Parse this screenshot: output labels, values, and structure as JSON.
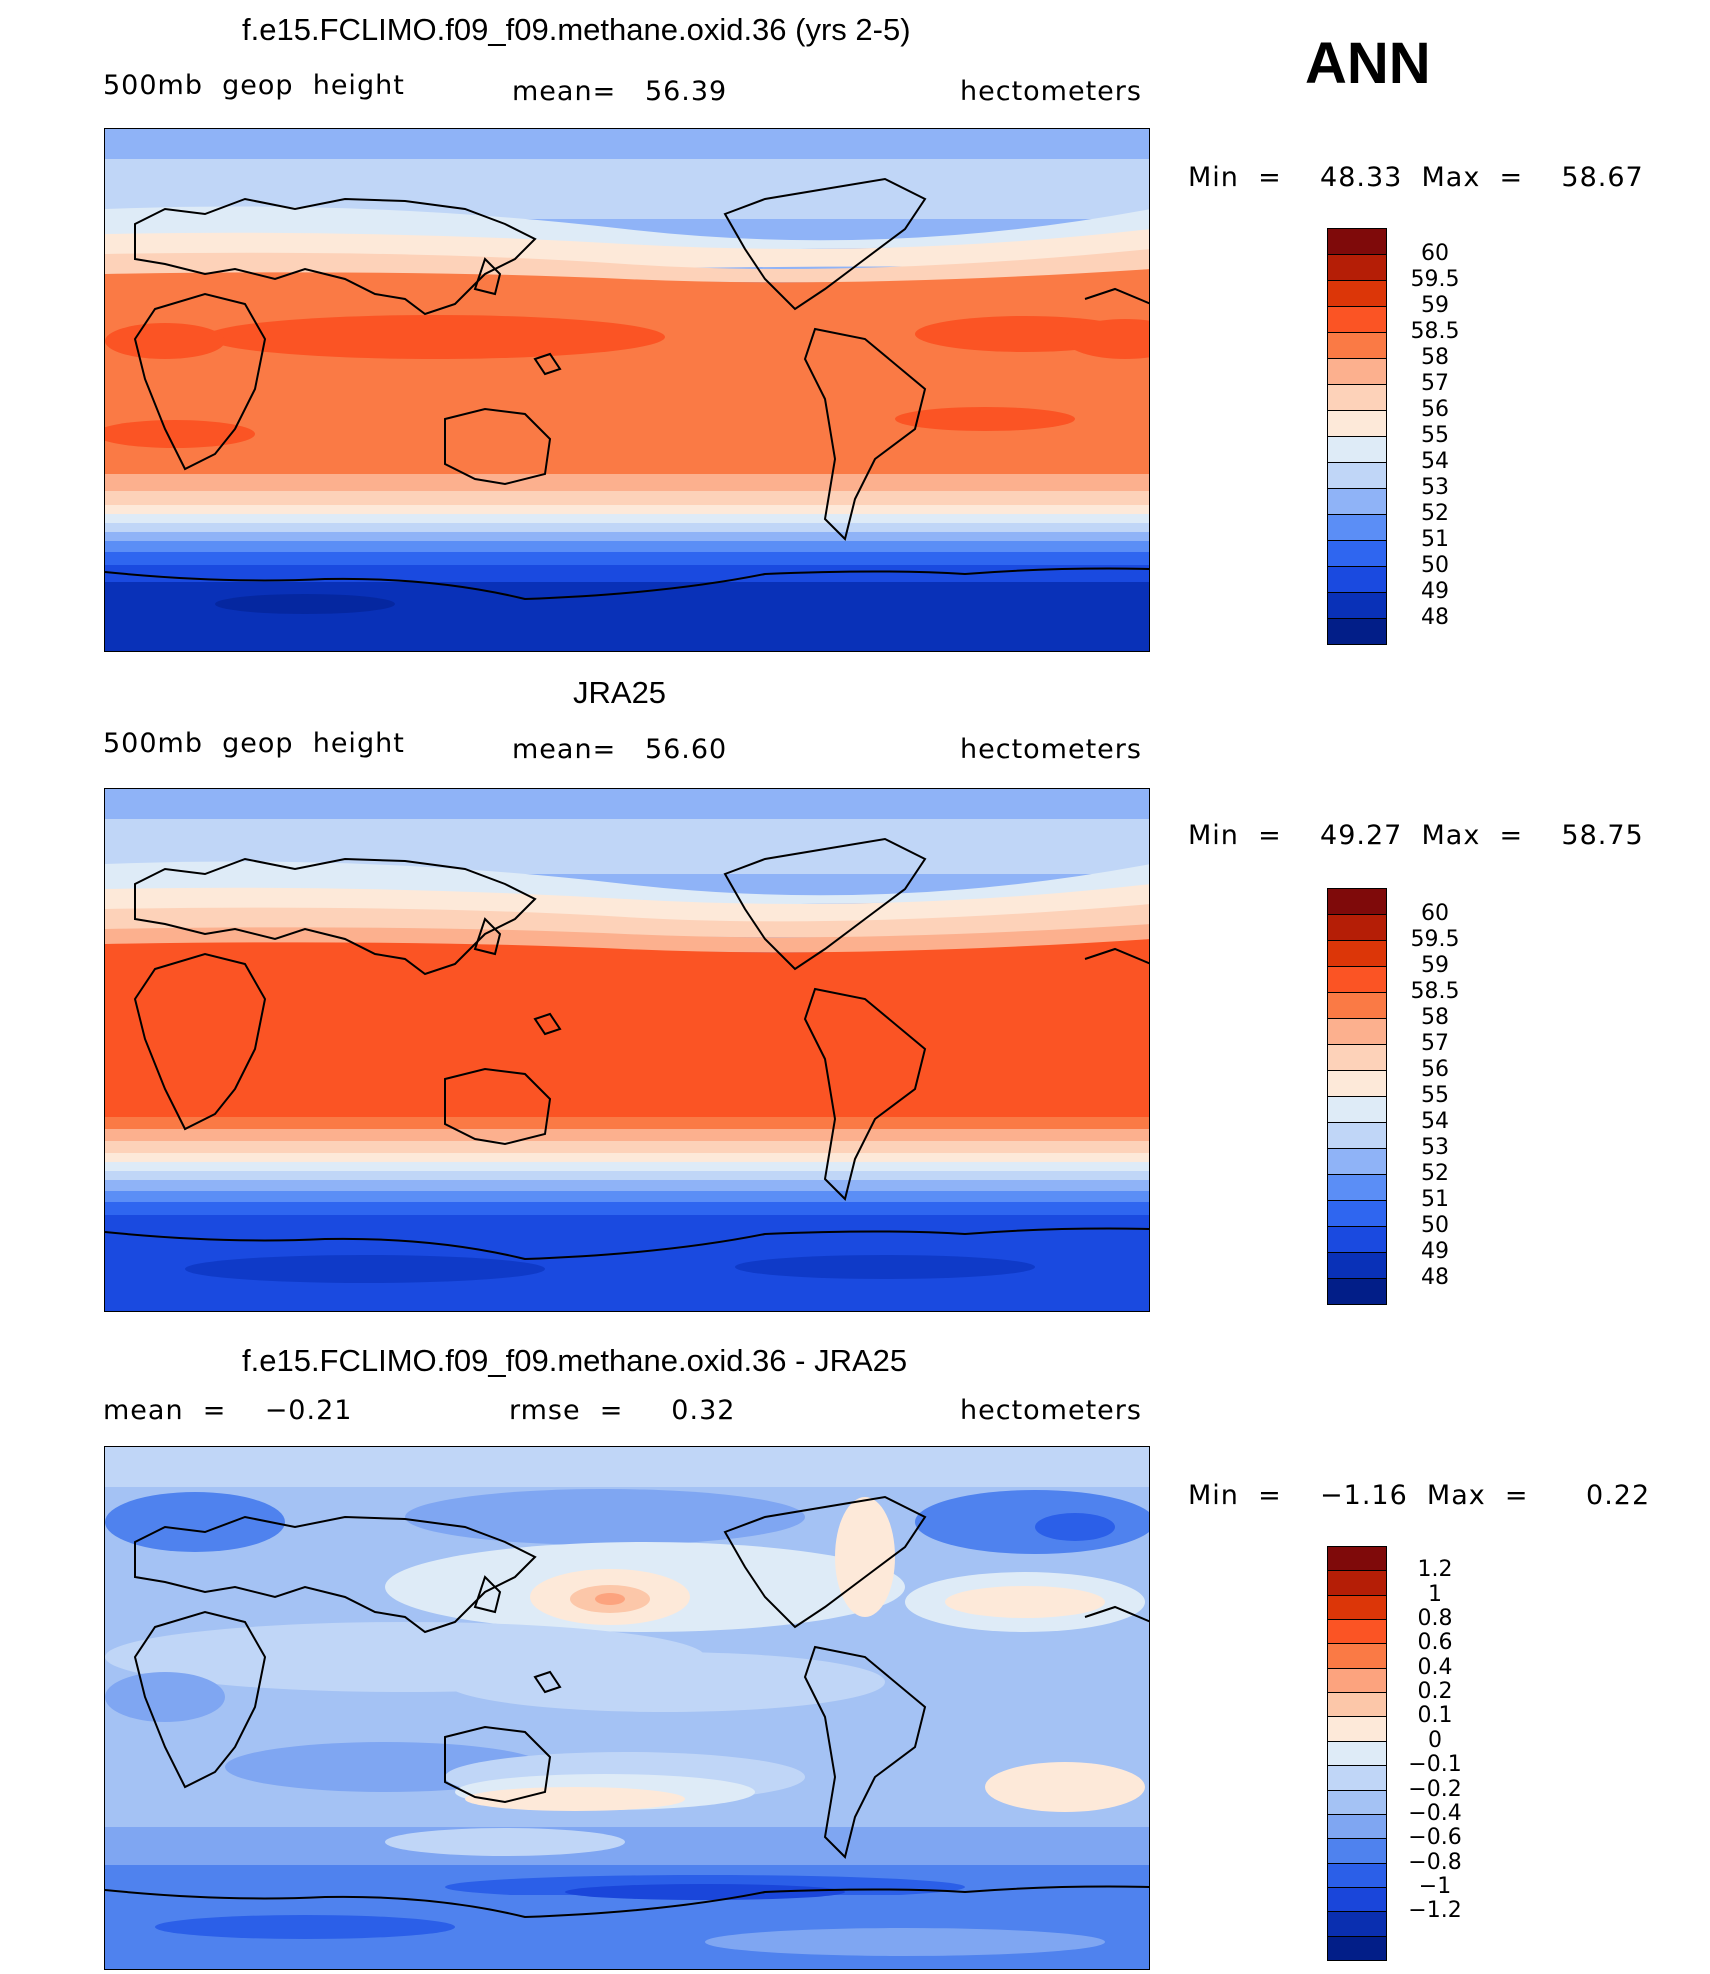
{
  "season_label": "ANN",
  "panels": [
    {
      "title": "f.e15.FCLIMO.f09_f09.methane.oxid.36 (yrs 2-5)",
      "left_label": "500mb  geop  height",
      "center_label": "mean=   56.39",
      "right_label": "hectometers",
      "min_max": "Min  =    48.33  Max  =    58.67",
      "colorbar_labels": [
        "60",
        "59.5",
        "59",
        "58.5",
        "58",
        "57",
        "56",
        "55",
        "54",
        "53",
        "52",
        "51",
        "50",
        "49",
        "48"
      ]
    },
    {
      "title": "JRA25",
      "left_label": "500mb  geop  height",
      "center_label": "mean=   56.60",
      "right_label": "hectometers",
      "min_max": "Min  =    49.27  Max  =    58.75",
      "colorbar_labels": [
        "60",
        "59.5",
        "59",
        "58.5",
        "58",
        "57",
        "56",
        "55",
        "54",
        "53",
        "52",
        "51",
        "50",
        "49",
        "48"
      ]
    },
    {
      "title": "f.e15.FCLIMO.f09_f09.methane.oxid.36 - JRA25",
      "left_label": "mean  =    −0.21",
      "center_label": "rmse  =     0.32",
      "right_label": "hectometers",
      "min_max": "Min  =    −1.16  Max  =      0.22",
      "colorbar_labels": [
        "1.2",
        "1",
        "0.8",
        "0.6",
        "0.4",
        "0.2",
        "0.1",
        "0",
        "−0.1",
        "−0.2",
        "−0.4",
        "−0.6",
        "−0.8",
        "−1",
        "−1.2"
      ]
    }
  ],
  "colors": {
    "abs_scale": [
      "#7f0a0a",
      "#b51e06",
      "#dc3608",
      "#fb5424",
      "#fa7a45",
      "#fcb08e",
      "#fdd2b9",
      "#fde9d9",
      "#deebf7",
      "#c0d6f7",
      "#8fb3f7",
      "#5b8ef6",
      "#2f66f0",
      "#1a4ae0",
      "#0931b8",
      "#021e88"
    ],
    "diff_scale": [
      "#7f0a0a",
      "#b51e06",
      "#dc3608",
      "#fb5424",
      "#fa7a45",
      "#fca37e",
      "#fcc7a9",
      "#fde9d9",
      "#deebf7",
      "#c0d6f7",
      "#a4c2f4",
      "#7fa6f2",
      "#4f82ee",
      "#2b5fe8",
      "#1a46da",
      "#0a2fb0",
      "#021e88"
    ]
  }
}
